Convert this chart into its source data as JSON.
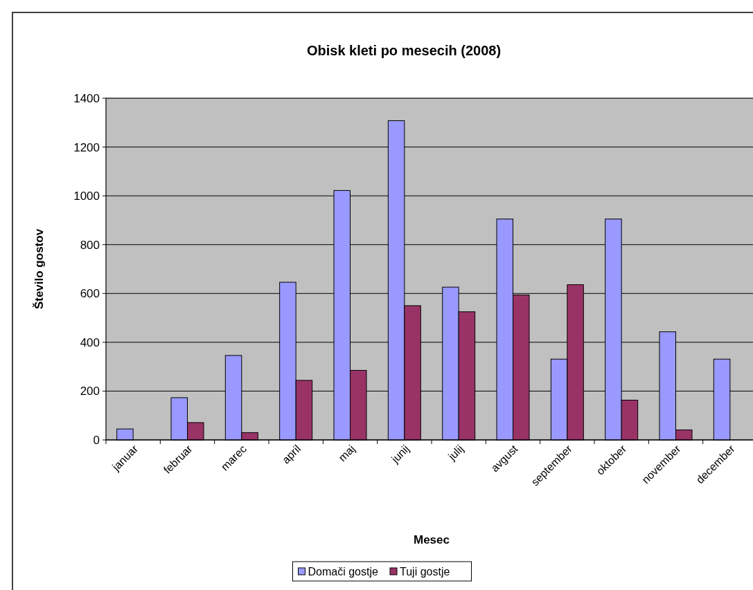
{
  "chart_data": {
    "type": "bar",
    "title": "Obisk kleti po mesecih (2008)",
    "xlabel": "Mesec",
    "ylabel": "Število gostov",
    "categories": [
      "januar",
      "februar",
      "marec",
      "april",
      "maj",
      "junij",
      "julij",
      "avgust",
      "september",
      "oktober",
      "november",
      "december"
    ],
    "series": [
      {
        "name": "Domači gostje",
        "color": "#9999ff",
        "values": [
          45,
          173,
          346,
          646,
          1022,
          1308,
          626,
          905,
          331,
          905,
          443,
          331
        ]
      },
      {
        "name": "Tuji gostje",
        "color": "#993366",
        "values": [
          null,
          71,
          30,
          244,
          285,
          550,
          525,
          594,
          636,
          163,
          41,
          null
        ]
      }
    ],
    "ylim": [
      0,
      1400
    ],
    "yticks": [
      0,
      200,
      400,
      600,
      800,
      1000,
      1200,
      1400
    ],
    "grid": "y",
    "legend": "bottom"
  }
}
